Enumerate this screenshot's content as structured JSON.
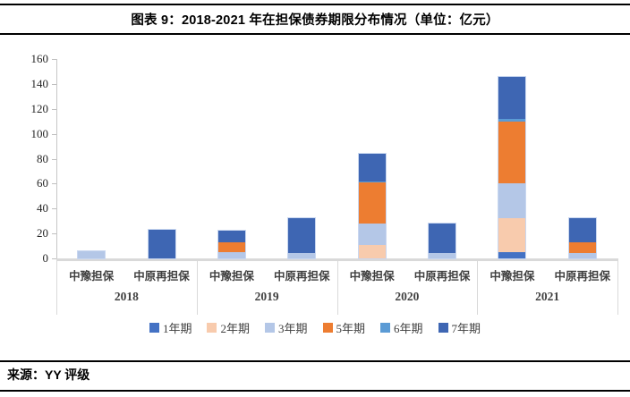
{
  "header": {
    "title": "图表 9：2018-2021 年在担保债券期限分布情况（单位：亿元）"
  },
  "chart_data": {
    "type": "bar",
    "stacked": true,
    "title": "2018-2021 年在担保债券期限分布情况",
    "unit": "亿元",
    "ylim": [
      0,
      160
    ],
    "ytick_step": 20,
    "grid": false,
    "legend_position": "bottom",
    "group_labels": [
      "2018",
      "2019",
      "2020",
      "2021"
    ],
    "bar_labels": [
      "中豫担保",
      "中原再担保",
      "中豫担保",
      "中原再担保",
      "中豫担保",
      "中原再担保",
      "中豫担保",
      "中原再担保"
    ],
    "series": [
      {
        "name": "1年期",
        "color": "#4472C4",
        "values": [
          0,
          0,
          0,
          0,
          0,
          0,
          5,
          0
        ]
      },
      {
        "name": "2年期",
        "color": "#F8CBAD",
        "values": [
          0,
          0,
          0,
          0,
          11,
          0,
          27,
          0
        ]
      },
      {
        "name": "3年期",
        "color": "#B4C7E7",
        "values": [
          6,
          0,
          5,
          4,
          17,
          4,
          28,
          4
        ]
      },
      {
        "name": "5年期",
        "color": "#ED7D31",
        "values": [
          0,
          0,
          8,
          0,
          33,
          0,
          50,
          9
        ]
      },
      {
        "name": "6年期",
        "color": "#5B9BD5",
        "values": [
          0,
          0,
          0,
          0,
          1,
          0,
          2,
          0
        ]
      },
      {
        "name": "7年期",
        "color": "#3E66B3",
        "values": [
          0,
          23,
          9,
          28,
          22,
          24,
          34,
          19
        ]
      }
    ],
    "totals": [
      6,
      23,
      22,
      32,
      84,
      28,
      146,
      32
    ]
  },
  "footer": {
    "source": "来源：YY 评级"
  }
}
